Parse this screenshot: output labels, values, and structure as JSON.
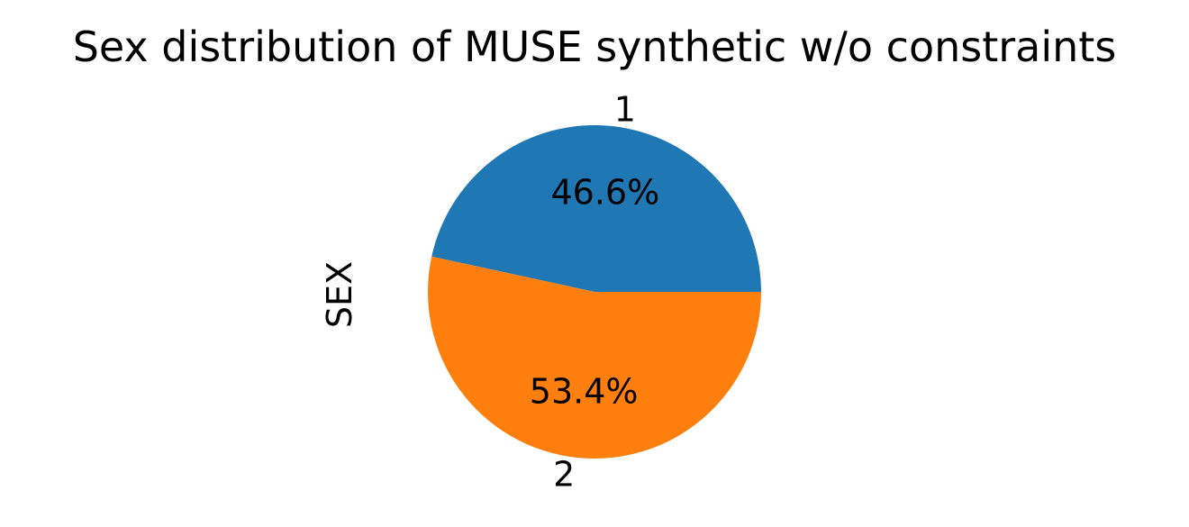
{
  "chart_data": {
    "type": "pie",
    "title": "Sex distribution of MUSE synthetic w/o constraints",
    "ylabel": "SEX",
    "categories": [
      "1",
      "2"
    ],
    "values": [
      46.6,
      53.4
    ],
    "percent_labels": [
      "46.6%",
      "53.4%"
    ],
    "colors": [
      "#1f77b4",
      "#ff7f0e"
    ],
    "start_angle_deg": 0,
    "direction": "counterclockwise"
  }
}
